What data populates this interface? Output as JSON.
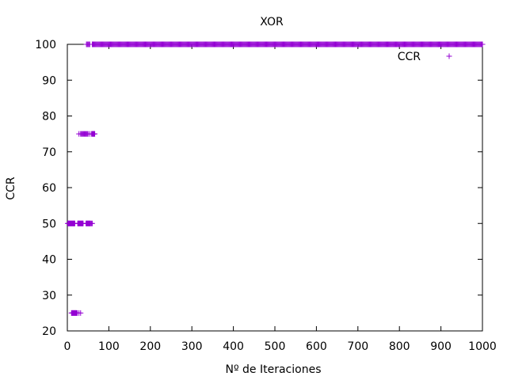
{
  "chart_data": {
    "type": "scatter",
    "title": "XOR",
    "xlabel": "Nº de Iteraciones",
    "ylabel": "CCR",
    "xlim": [
      0,
      1000
    ],
    "ylim": [
      20,
      100
    ],
    "xticks": [
      0,
      100,
      200,
      300,
      400,
      500,
      600,
      700,
      800,
      900,
      1000
    ],
    "yticks": [
      20,
      30,
      40,
      50,
      60,
      70,
      80,
      90,
      100
    ],
    "grid": false,
    "legend_position": "top-right",
    "marker": "+",
    "color": "#9400d3",
    "series": [
      {
        "name": "CCR",
        "points": [
          [
            10,
            25
          ],
          [
            11,
            25
          ],
          [
            12,
            25
          ],
          [
            13,
            25
          ],
          [
            14,
            25
          ],
          [
            15,
            25
          ],
          [
            16,
            25
          ],
          [
            17,
            25
          ],
          [
            18,
            25
          ],
          [
            19,
            25
          ],
          [
            20,
            25
          ],
          [
            21,
            25
          ],
          [
            22,
            25
          ],
          [
            24,
            25
          ],
          [
            28,
            25
          ],
          [
            32,
            25
          ],
          [
            1,
            50
          ],
          [
            2,
            50
          ],
          [
            3,
            50
          ],
          [
            4,
            50
          ],
          [
            5,
            50
          ],
          [
            6,
            50
          ],
          [
            7,
            50
          ],
          [
            8,
            50
          ],
          [
            9,
            50
          ],
          [
            10,
            50
          ],
          [
            11,
            50
          ],
          [
            12,
            50
          ],
          [
            13,
            50
          ],
          [
            14,
            50
          ],
          [
            15,
            50
          ],
          [
            16,
            50
          ],
          [
            17,
            50
          ],
          [
            18,
            50
          ],
          [
            25,
            50
          ],
          [
            26,
            50
          ],
          [
            27,
            50
          ],
          [
            28,
            50
          ],
          [
            29,
            50
          ],
          [
            30,
            50
          ],
          [
            31,
            50
          ],
          [
            32,
            50
          ],
          [
            33,
            50
          ],
          [
            34,
            50
          ],
          [
            35,
            50
          ],
          [
            36,
            50
          ],
          [
            37,
            50
          ],
          [
            38,
            50
          ],
          [
            45,
            50
          ],
          [
            46,
            50
          ],
          [
            47,
            50
          ],
          [
            48,
            50
          ],
          [
            49,
            50
          ],
          [
            50,
            50
          ],
          [
            51,
            50
          ],
          [
            52,
            50
          ],
          [
            53,
            50
          ],
          [
            54,
            50
          ],
          [
            55,
            50
          ],
          [
            56,
            50
          ],
          [
            58,
            50
          ],
          [
            60,
            50
          ],
          [
            28,
            75
          ],
          [
            32,
            75
          ],
          [
            34,
            75
          ],
          [
            36,
            75
          ],
          [
            38,
            75
          ],
          [
            40,
            75
          ],
          [
            42,
            75
          ],
          [
            44,
            75
          ],
          [
            46,
            75
          ],
          [
            48,
            75
          ],
          [
            50,
            75
          ],
          [
            54,
            75
          ],
          [
            58,
            75
          ],
          [
            60,
            75
          ],
          [
            61,
            75
          ],
          [
            62,
            75
          ],
          [
            63,
            75
          ],
          [
            64,
            75
          ],
          [
            65,
            75
          ],
          [
            66,
            75
          ],
          [
            46,
            100
          ],
          [
            48,
            100
          ],
          [
            50,
            100
          ],
          [
            52,
            100
          ],
          [
            54,
            100
          ]
        ],
        "dense_ranges": [
          {
            "from": 60,
            "to": 1000,
            "step": 2,
            "y": 100
          }
        ]
      }
    ]
  }
}
